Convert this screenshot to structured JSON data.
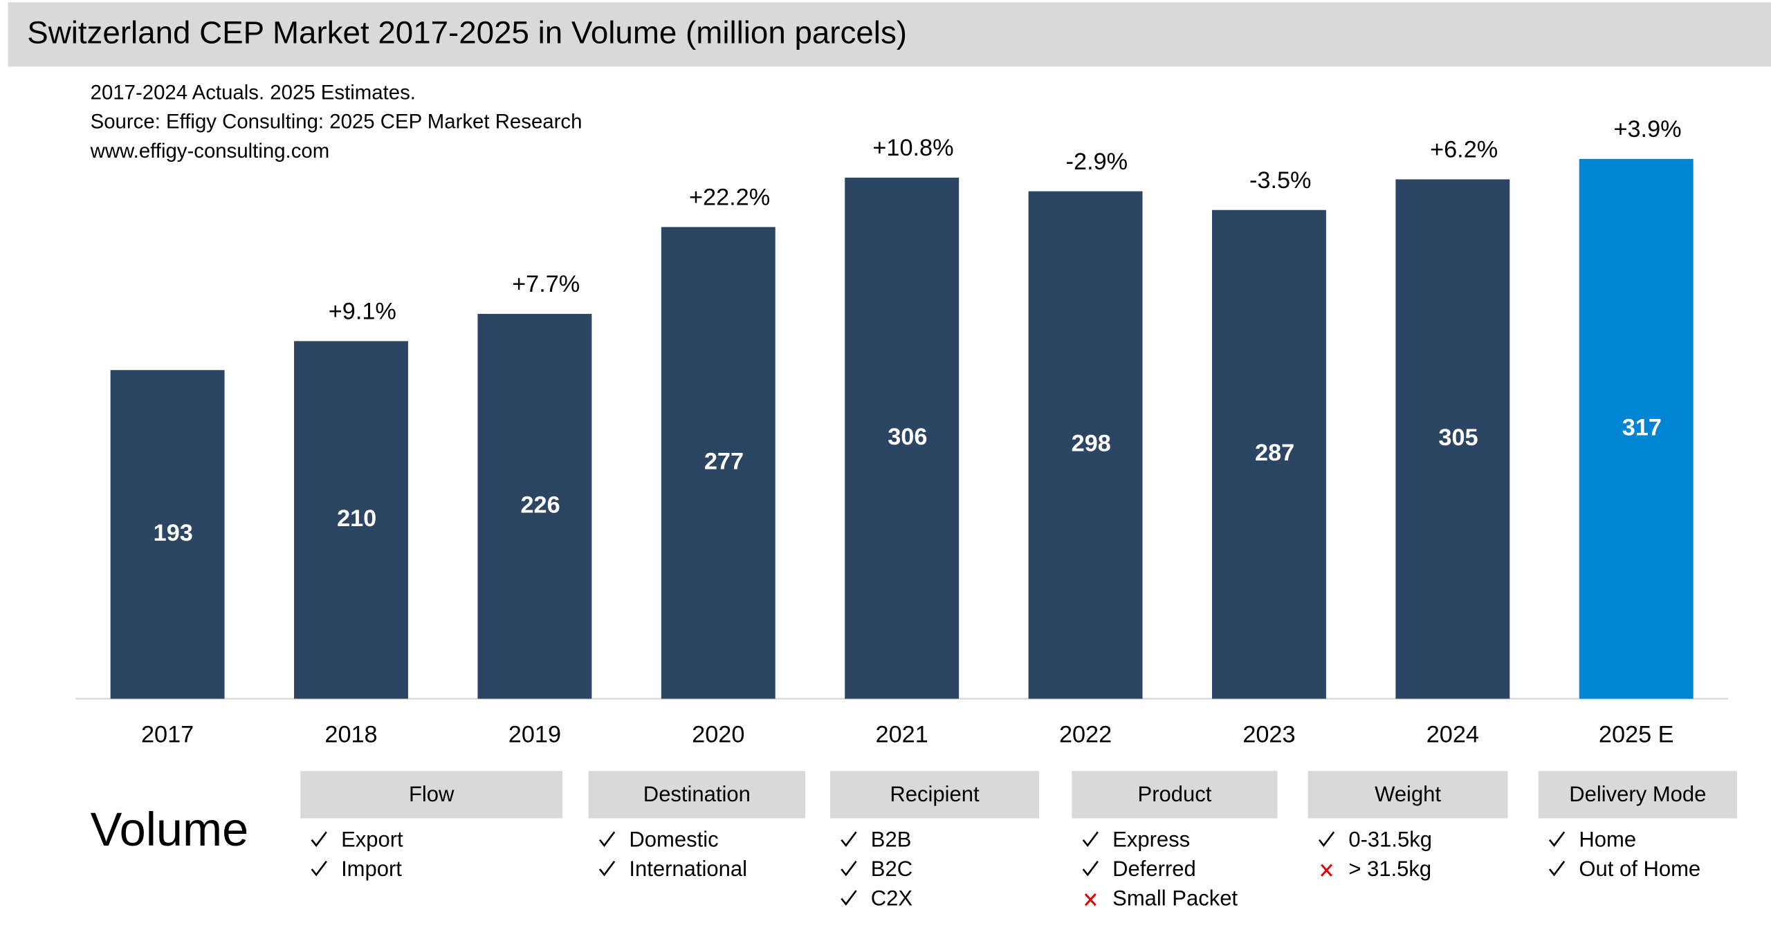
{
  "chart_data": {
    "type": "bar",
    "title": "Switzerland CEP Market 2017-2025 in Volume (million parcels)",
    "notes": [
      "2017-2024 Actuals. 2025 Estimates.",
      "Source: Effigy Consulting: 2025 CEP Market Research",
      "www.effigy-consulting.com"
    ],
    "categories": [
      "2017",
      "2018",
      "2019",
      "2020",
      "2021",
      "2022",
      "2023",
      "2024",
      "2025 E"
    ],
    "values": [
      193,
      210,
      226,
      277,
      306,
      298,
      287,
      305,
      317
    ],
    "growth_labels": [
      null,
      "+9.1%",
      "+7.7%",
      "+22.2%",
      "+10.8%",
      "-2.9%",
      "-3.5%",
      "+6.2%",
      "+3.9%"
    ],
    "colors": [
      "#2c4563",
      "#2c4563",
      "#2c4563",
      "#2c4563",
      "#2c4563",
      "#2c4563",
      "#2c4563",
      "#2c4563",
      "#0085d5"
    ],
    "ylim": [
      0,
      350
    ]
  },
  "panel": {
    "label": "Volume",
    "segments": [
      {
        "title": "Flow",
        "items": [
          {
            "text": "Export",
            "included": true
          },
          {
            "text": "Import",
            "included": true
          }
        ]
      },
      {
        "title": "Destination",
        "items": [
          {
            "text": "Domestic",
            "included": true
          },
          {
            "text": "International",
            "included": true
          }
        ]
      },
      {
        "title": "Recipient",
        "items": [
          {
            "text": "B2B",
            "included": true
          },
          {
            "text": "B2C",
            "included": true
          },
          {
            "text": "C2X",
            "included": true
          }
        ]
      },
      {
        "title": "Product",
        "items": [
          {
            "text": "Express",
            "included": true
          },
          {
            "text": "Deferred",
            "included": true
          },
          {
            "text": "Small Packet",
            "included": false
          }
        ]
      },
      {
        "title": "Weight",
        "items": [
          {
            "text": "0-31.5kg",
            "included": true
          },
          {
            "text": "> 31.5kg",
            "included": false
          }
        ]
      },
      {
        "title": "Delivery Mode",
        "items": [
          {
            "text": "Home",
            "included": true
          },
          {
            "text": "Out of Home",
            "included": true
          }
        ]
      }
    ]
  }
}
